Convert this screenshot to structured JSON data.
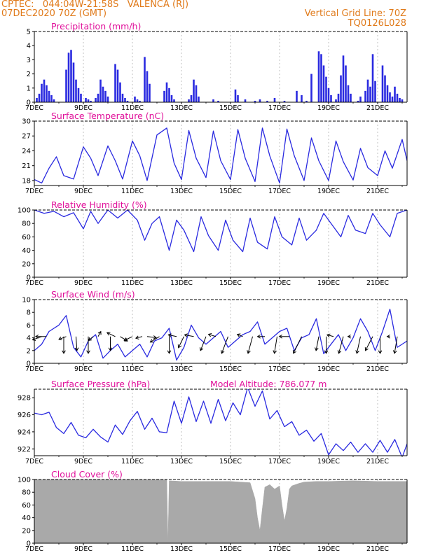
{
  "header": {
    "line1": "CPTEC:   044:04W-21:58S   VALENCA (RJ)",
    "line2": "07DEC2020 70Z (GMT)",
    "right1": "Vertical Grid Line: 70Z",
    "right2": "TQ0126L028"
  },
  "colors": {
    "header": "#e07a1a",
    "title": "#e0109a",
    "series": "#2a2ae0",
    "cloud": "#a9a9a9"
  },
  "x_axis": {
    "ticks": [
      "7DEC",
      "9DEC",
      "11DEC",
      "13DEC",
      "15DEC",
      "17DEC",
      "19DEC",
      "21DEC"
    ],
    "start_day": 7,
    "end_day": 22.2
  },
  "chart_data": [
    {
      "type": "bar",
      "title": "Precipitation (mm/h)",
      "ylim": [
        0,
        5
      ],
      "yticks": [
        "0",
        "1",
        "2",
        "3",
        "4",
        "5"
      ],
      "x": [
        7.1,
        7.2,
        7.3,
        7.4,
        7.5,
        7.6,
        7.7,
        7.8,
        8.3,
        8.4,
        8.5,
        8.6,
        8.7,
        8.8,
        8.9,
        9.1,
        9.2,
        9.3,
        9.5,
        9.6,
        9.7,
        9.8,
        9.9,
        10.0,
        10.3,
        10.4,
        10.5,
        10.6,
        10.7,
        10.8,
        11.1,
        11.2,
        11.3,
        11.5,
        11.6,
        11.7,
        12.3,
        12.4,
        12.5,
        12.6,
        12.7,
        13.3,
        13.4,
        13.5,
        13.6,
        13.7,
        14.3,
        14.5,
        15.2,
        15.3,
        15.6,
        16.0,
        16.2,
        16.5,
        16.8,
        17.2,
        17.7,
        17.9,
        18.1,
        18.3,
        18.6,
        18.7,
        18.8,
        18.9,
        19.0,
        19.1,
        19.3,
        19.4,
        19.5,
        19.6,
        19.7,
        19.8,
        19.9,
        20.2,
        20.3,
        20.5,
        20.6,
        20.7,
        20.8,
        20.9,
        21.2,
        21.3,
        21.4,
        21.5,
        21.6,
        21.7,
        21.8,
        21.9,
        22.0
      ],
      "values": [
        0.3,
        0.6,
        1.3,
        1.6,
        1.2,
        0.8,
        0.5,
        0.2,
        2.3,
        3.5,
        3.7,
        2.8,
        1.6,
        1.0,
        0.6,
        0.3,
        0.2,
        0.1,
        0.3,
        0.6,
        1.6,
        1.1,
        0.8,
        0.4,
        2.7,
        2.3,
        1.4,
        0.6,
        0.3,
        0.1,
        0.4,
        0.2,
        0.1,
        3.2,
        2.2,
        1.3,
        0.8,
        1.4,
        1.0,
        0.5,
        0.2,
        0.2,
        0.5,
        1.6,
        1.2,
        0.4,
        0.2,
        0.1,
        0.9,
        0.5,
        0.2,
        0.1,
        0.2,
        0.1,
        0.3,
        0.1,
        0.8,
        0.5,
        0.1,
        2.0,
        3.6,
        3.4,
        2.6,
        1.8,
        1.0,
        0.5,
        0.2,
        0.6,
        1.9,
        3.3,
        2.6,
        1.2,
        0.6,
        0.1,
        0.4,
        0.8,
        1.6,
        1.1,
        3.4,
        1.5,
        2.6,
        1.9,
        1.2,
        0.7,
        0.4,
        1.1,
        0.6,
        0.3,
        0.2
      ]
    },
    {
      "type": "line",
      "title": "Surface Temperature (nC)",
      "ylim": [
        17,
        30
      ],
      "yticks": [
        "18",
        "21",
        "24",
        "27",
        "30"
      ],
      "x": [
        7.0,
        7.3,
        7.6,
        7.9,
        8.2,
        8.6,
        9.0,
        9.3,
        9.6,
        10.0,
        10.3,
        10.6,
        11.0,
        11.3,
        11.6,
        12.0,
        12.4,
        12.7,
        13.0,
        13.3,
        13.6,
        14.0,
        14.3,
        14.6,
        15.0,
        15.3,
        15.6,
        16.0,
        16.3,
        16.6,
        17.0,
        17.3,
        17.6,
        18.0,
        18.3,
        18.6,
        19.0,
        19.3,
        19.6,
        20.0,
        20.3,
        20.6,
        21.0,
        21.3,
        21.6,
        22.0,
        22.2
      ],
      "values": [
        18.2,
        17.5,
        20.5,
        22.8,
        19.0,
        18.3,
        24.8,
        22.5,
        19.0,
        25.0,
        22.0,
        18.3,
        26.0,
        23.0,
        18.0,
        27.2,
        28.6,
        21.5,
        18.2,
        28.1,
        22.5,
        18.6,
        28.0,
        22.0,
        18.2,
        28.3,
        22.5,
        17.8,
        28.6,
        23.0,
        17.5,
        28.4,
        23.0,
        18.0,
        26.6,
        22.0,
        18.0,
        26.0,
        21.8,
        18.1,
        24.5,
        20.6,
        19.0,
        24.0,
        20.5,
        26.3,
        22.0
      ]
    },
    {
      "type": "line",
      "title": "Relative Humidity (%)",
      "ylim": [
        0,
        100
      ],
      "yticks": [
        "0",
        "20",
        "40",
        "60",
        "80",
        "100"
      ],
      "x": [
        7.0,
        7.4,
        7.8,
        8.2,
        8.6,
        9.0,
        9.3,
        9.6,
        10.0,
        10.4,
        10.8,
        11.2,
        11.5,
        11.8,
        12.1,
        12.5,
        12.8,
        13.1,
        13.5,
        13.8,
        14.1,
        14.5,
        14.8,
        15.1,
        15.5,
        15.8,
        16.1,
        16.5,
        16.8,
        17.1,
        17.5,
        17.8,
        18.1,
        18.5,
        18.8,
        19.1,
        19.5,
        19.8,
        20.1,
        20.5,
        20.8,
        21.1,
        21.5,
        21.8,
        22.2
      ],
      "values": [
        100,
        95,
        98,
        90,
        96,
        72,
        98,
        80,
        100,
        88,
        100,
        85,
        55,
        80,
        90,
        40,
        85,
        70,
        38,
        90,
        62,
        40,
        85,
        55,
        38,
        88,
        52,
        42,
        90,
        60,
        48,
        88,
        55,
        70,
        95,
        80,
        60,
        92,
        70,
        65,
        95,
        78,
        60,
        95,
        100
      ]
    },
    {
      "type": "line",
      "title": "Surface Wind (m/s)",
      "ylim": [
        0,
        10
      ],
      "yticks": [
        "0",
        "2",
        "4",
        "6",
        "8",
        "10"
      ],
      "x": [
        7.0,
        7.3,
        7.6,
        8.0,
        8.3,
        8.6,
        8.9,
        9.2,
        9.5,
        9.8,
        10.1,
        10.4,
        10.7,
        11.0,
        11.3,
        11.6,
        11.9,
        12.2,
        12.5,
        12.8,
        13.1,
        13.4,
        13.7,
        14.0,
        14.3,
        14.6,
        14.9,
        15.2,
        15.5,
        15.8,
        16.1,
        16.4,
        16.7,
        17.0,
        17.3,
        17.6,
        17.9,
        18.2,
        18.5,
        18.8,
        19.1,
        19.4,
        19.7,
        20.0,
        20.3,
        20.6,
        20.9,
        21.2,
        21.5,
        21.8,
        22.2
      ],
      "values": [
        2.0,
        3.0,
        5.0,
        6.0,
        7.5,
        2.5,
        1.0,
        3.5,
        4.5,
        0.8,
        2.0,
        3.0,
        1.0,
        2.0,
        3.0,
        1.0,
        3.5,
        4.0,
        5.5,
        0.5,
        2.5,
        6.0,
        4.0,
        3.0,
        4.0,
        5.0,
        2.5,
        3.5,
        4.5,
        5.0,
        6.5,
        3.0,
        4.0,
        5.0,
        5.5,
        2.0,
        4.0,
        4.5,
        7.0,
        1.5,
        3.0,
        4.5,
        2.0,
        4.0,
        7.0,
        5.0,
        2.0,
        5.0,
        8.5,
        2.5,
        3.5
      ],
      "arrows_x": [
        7.3,
        7.5,
        8.2,
        8.3,
        8.7,
        9.2,
        9.4,
        9.6,
        10.1,
        10.3,
        10.5,
        11.0,
        11.4,
        11.6,
        12.1,
        12.5,
        12.8,
        13.1,
        13.5,
        14.0,
        14.4,
        14.9,
        15.5,
        15.9,
        16.4,
        16.9,
        17.4,
        17.9,
        18.3,
        18.6,
        18.9,
        19.2,
        19.6,
        19.9,
        20.3,
        20.8,
        21.1,
        21.5,
        21.8,
        22.1
      ],
      "arrows_dx": [
        -1.0,
        -1.2,
        0.0,
        -0.8,
        0.1,
        0.0,
        -0.5,
        0.3,
        0.0,
        -0.9,
        0.8,
        -0.9,
        -0.7,
        1.0,
        -1.0,
        0.0,
        -0.9,
        -0.6,
        -1.0,
        -0.6,
        -0.8,
        -0.7,
        -0.6,
        -0.5,
        -0.8,
        -0.3,
        -1.1,
        -0.9,
        0.0,
        -0.3,
        0.0,
        -0.7,
        -0.5,
        -0.3,
        -0.4,
        -0.8,
        0.0,
        -0.3,
        -0.3,
        0.0
      ],
      "arrows_dy": [
        -0.6,
        0.0,
        -3.0,
        -0.5,
        -2.5,
        -3.0,
        -0.7,
        0.9,
        -2.5,
        0.7,
        -0.8,
        -0.7,
        -0.3,
        -0.2,
        -1.0,
        -3.0,
        0.3,
        -2.0,
        0.3,
        -2.5,
        0.4,
        -3.0,
        0.4,
        -3.0,
        0.0,
        -3.0,
        0.0,
        -3.0,
        0.0,
        -2.5,
        -3.0,
        0.3,
        -3.0,
        0.0,
        -3.0,
        -2.5,
        -3.0,
        0.0,
        -3.0,
        0.0
      ]
    },
    {
      "type": "line",
      "title": "Surface Pressure (hPa)",
      "annotation": "Model Altitude: 786.077 m",
      "ylim": [
        921.2,
        929
      ],
      "yticks": [
        "922",
        "924",
        "926",
        "928"
      ],
      "x": [
        7.0,
        7.3,
        7.6,
        7.9,
        8.2,
        8.5,
        8.8,
        9.1,
        9.4,
        9.7,
        10.0,
        10.3,
        10.6,
        10.9,
        11.2,
        11.5,
        11.8,
        12.1,
        12.4,
        12.7,
        13.0,
        13.3,
        13.6,
        13.9,
        14.2,
        14.5,
        14.8,
        15.1,
        15.4,
        15.7,
        16.0,
        16.3,
        16.6,
        16.9,
        17.2,
        17.5,
        17.8,
        18.1,
        18.4,
        18.7,
        19.0,
        19.3,
        19.6,
        19.9,
        20.2,
        20.5,
        20.8,
        21.1,
        21.4,
        21.7,
        22.0,
        22.2
      ],
      "values": [
        926.2,
        926.0,
        926.3,
        924.5,
        923.8,
        925.1,
        923.6,
        923.3,
        924.3,
        923.4,
        922.8,
        924.8,
        923.7,
        925.3,
        926.4,
        924.3,
        925.6,
        924.0,
        923.9,
        927.6,
        925.0,
        928.1,
        925.2,
        927.6,
        925.0,
        927.8,
        925.3,
        927.4,
        926.0,
        929.2,
        927.0,
        928.8,
        925.5,
        926.5,
        924.6,
        925.2,
        923.6,
        924.2,
        922.9,
        923.8,
        921.3,
        922.6,
        921.8,
        922.8,
        921.6,
        922.6,
        921.6,
        923.0,
        921.6,
        923.1,
        921.0,
        922.6
      ]
    },
    {
      "type": "area",
      "title": "Cloud Cover (%)",
      "ylim": [
        0,
        100
      ],
      "yticks": [
        "0",
        "20",
        "40",
        "60",
        "80",
        "100"
      ],
      "x": [
        7.0,
        9.0,
        12.4,
        12.45,
        12.5,
        13.0,
        15.0,
        15.8,
        16.0,
        16.1,
        16.2,
        16.3,
        16.4,
        16.6,
        16.8,
        17.0,
        17.1,
        17.2,
        17.3,
        17.4,
        17.5,
        17.8,
        18.0,
        18.5,
        19.0,
        20.0,
        21.0,
        22.2
      ],
      "values": [
        100,
        100,
        100,
        0,
        98,
        97,
        97,
        95,
        70,
        40,
        20,
        55,
        88,
        92,
        85,
        90,
        60,
        35,
        55,
        85,
        90,
        94,
        96,
        97,
        97,
        98,
        97,
        97
      ]
    }
  ]
}
